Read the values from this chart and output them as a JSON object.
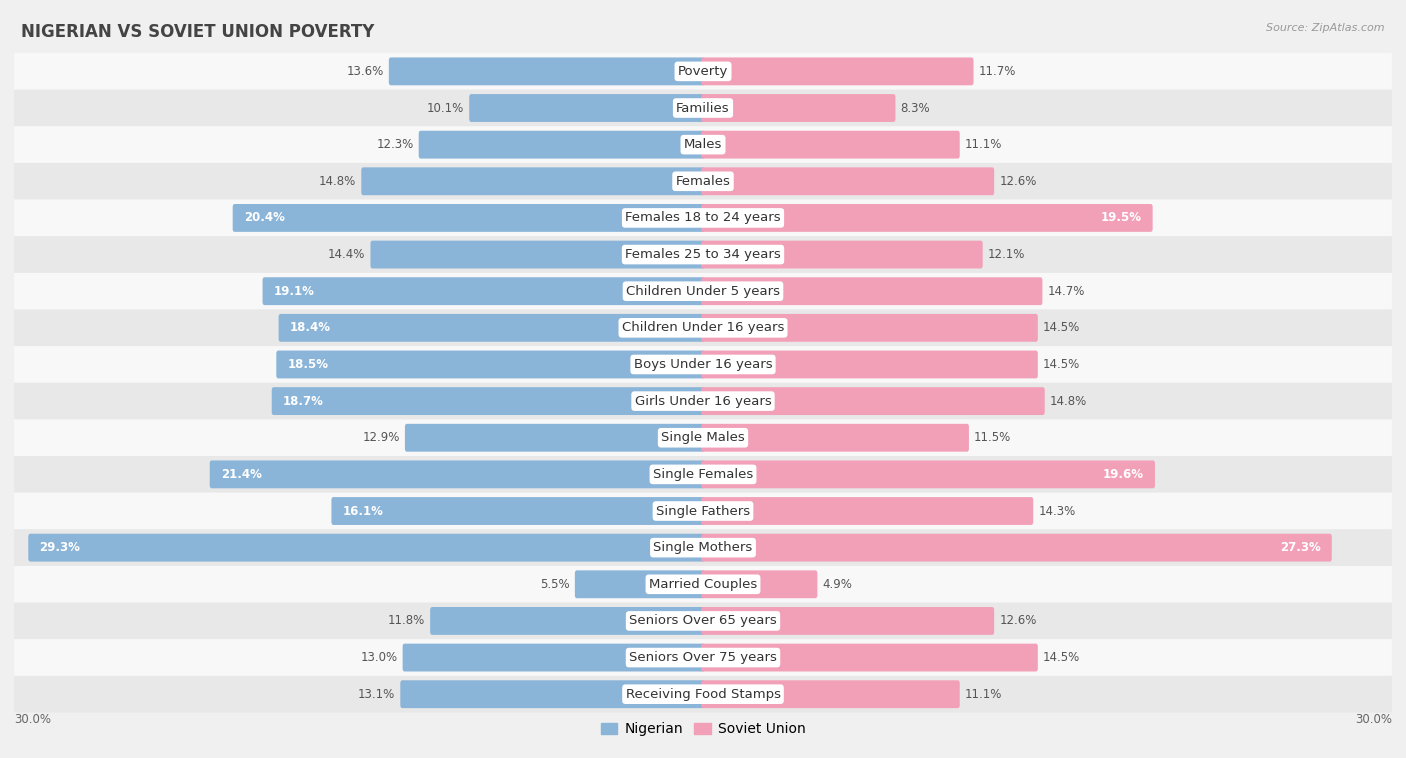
{
  "title": "NIGERIAN VS SOVIET UNION POVERTY",
  "source": "Source: ZipAtlas.com",
  "categories": [
    "Poverty",
    "Families",
    "Males",
    "Females",
    "Females 18 to 24 years",
    "Females 25 to 34 years",
    "Children Under 5 years",
    "Children Under 16 years",
    "Boys Under 16 years",
    "Girls Under 16 years",
    "Single Males",
    "Single Females",
    "Single Fathers",
    "Single Mothers",
    "Married Couples",
    "Seniors Over 65 years",
    "Seniors Over 75 years",
    "Receiving Food Stamps"
  ],
  "nigerian": [
    13.6,
    10.1,
    12.3,
    14.8,
    20.4,
    14.4,
    19.1,
    18.4,
    18.5,
    18.7,
    12.9,
    21.4,
    16.1,
    29.3,
    5.5,
    11.8,
    13.0,
    13.1
  ],
  "soviet": [
    11.7,
    8.3,
    11.1,
    12.6,
    19.5,
    12.1,
    14.7,
    14.5,
    14.5,
    14.8,
    11.5,
    19.6,
    14.3,
    27.3,
    4.9,
    12.6,
    14.5,
    11.1
  ],
  "nigerian_color": "#8ab4d8",
  "soviet_color": "#f2a0b8",
  "nigerian_label": "Nigerian",
  "soviet_label": "Soviet Union",
  "background_color": "#f0f0f0",
  "row_bg_light": "#f8f8f8",
  "row_bg_dark": "#e8e8e8",
  "max_val": 30.0,
  "bar_height": 0.6,
  "title_fontsize": 12,
  "label_fontsize": 9.5,
  "value_fontsize": 8.5,
  "legend_fontsize": 10,
  "inside_threshold": 15.0
}
